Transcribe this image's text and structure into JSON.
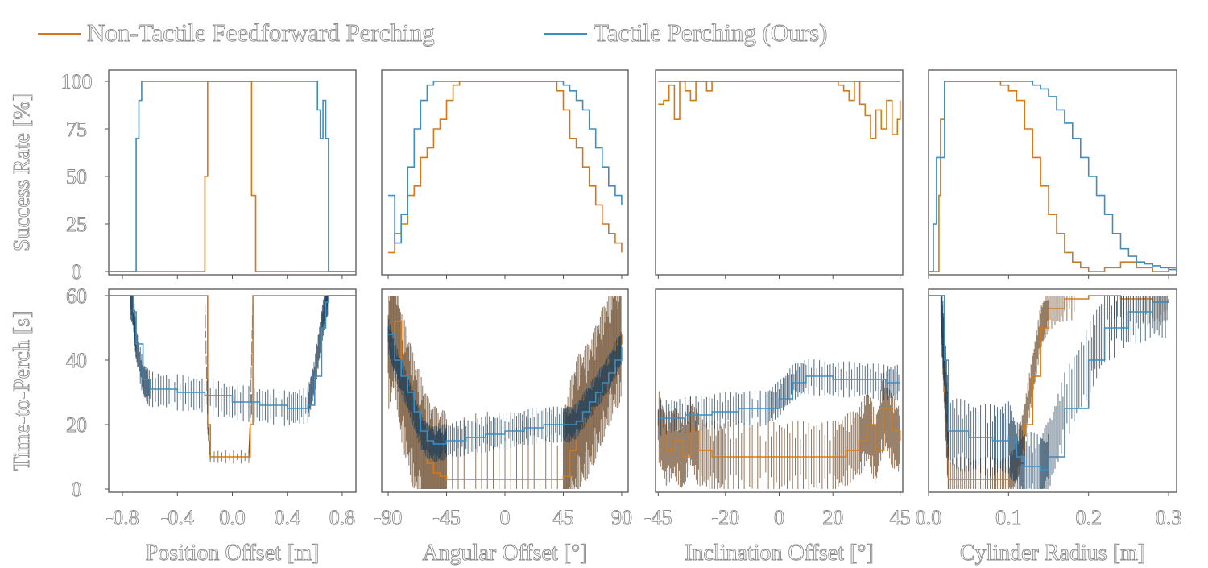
{
  "legend": [
    {
      "label": "Non-Tactile Feedforward Perching",
      "color": "#d4791a"
    },
    {
      "label": "Tactile Perching (Ours)",
      "color": "#3a8fc4"
    }
  ],
  "row_labels": {
    "top": "Success Rate [%]",
    "bottom": "Time-to-Perch [s]"
  },
  "colors": {
    "orange": "#d4791a",
    "blue": "#3a8fc4",
    "err_orange": "#6b4a2a",
    "err_blue": "#1f3f5a"
  },
  "chart_data": [
    {
      "type": "line",
      "panel": "success-rate",
      "column": "position",
      "xlabel": "Position Offset [m]",
      "ylabel": "Success Rate [%]",
      "xlim": [
        -0.9,
        0.9
      ],
      "ylim": [
        0,
        100
      ],
      "xticks": [
        "-0.8",
        "-0.4",
        "0.0",
        "0.4",
        "0.8"
      ],
      "yticks": [
        "0",
        "25",
        "50",
        "75",
        "100"
      ],
      "series": [
        {
          "name": "Non-Tactile Feedforward Perching",
          "x": [
            -0.9,
            -0.2,
            -0.2,
            -0.18,
            -0.16,
            0.13,
            0.14,
            0.17,
            0.9
          ],
          "y": [
            0,
            0,
            50,
            100,
            100,
            100,
            40,
            0,
            0
          ]
        },
        {
          "name": "Tactile Perching (Ours)",
          "x": [
            -0.9,
            -0.71,
            -0.7,
            -0.68,
            -0.66,
            0.6,
            0.62,
            0.64,
            0.66,
            0.68,
            0.7,
            0.9
          ],
          "y": [
            0,
            0,
            70,
            90,
            100,
            100,
            85,
            70,
            90,
            70,
            0,
            0
          ]
        }
      ]
    },
    {
      "type": "line",
      "panel": "success-rate",
      "column": "angular",
      "xlabel": "Angular Offset [°]",
      "ylabel": "",
      "xlim": [
        -95,
        95
      ],
      "ylim": [
        0,
        100
      ],
      "xticks": [
        "-90",
        "-45",
        "0",
        "45",
        "90"
      ],
      "yticks": [],
      "series": [
        {
          "name": "Non-Tactile Feedforward Perching",
          "x": [
            -90,
            -85,
            -80,
            -75,
            -70,
            -65,
            -60,
            -55,
            -50,
            -45,
            -40,
            -35,
            35,
            40,
            45,
            50,
            55,
            60,
            65,
            70,
            75,
            80,
            85,
            90
          ],
          "y": [
            10,
            20,
            25,
            40,
            45,
            60,
            65,
            75,
            80,
            90,
            98,
            100,
            100,
            95,
            85,
            70,
            65,
            55,
            45,
            35,
            25,
            20,
            15,
            10
          ]
        },
        {
          "name": "Tactile Perching (Ours)",
          "x": [
            -90,
            -85,
            -80,
            -75,
            -70,
            -65,
            -60,
            -55,
            -50,
            -45,
            40,
            45,
            50,
            55,
            60,
            65,
            70,
            75,
            80,
            85,
            90
          ],
          "y": [
            40,
            15,
            30,
            55,
            75,
            90,
            98,
            100,
            100,
            100,
            100,
            98,
            95,
            90,
            85,
            75,
            65,
            55,
            45,
            40,
            35
          ]
        }
      ]
    },
    {
      "type": "line",
      "panel": "success-rate",
      "column": "inclination",
      "xlabel": "Inclination Offset [°]",
      "ylabel": "",
      "xlim": [
        -46,
        46
      ],
      "ylim": [
        0,
        100
      ],
      "xticks": [
        "-45",
        "-20",
        "0",
        "20",
        "45"
      ],
      "yticks": [],
      "series": [
        {
          "name": "Non-Tactile Feedforward Perching",
          "x": [
            -45,
            -43,
            -41,
            -39,
            -37,
            -35,
            -33,
            -31,
            -29,
            -27,
            -25,
            20,
            22,
            24,
            26,
            28,
            30,
            32,
            34,
            36,
            38,
            40,
            42,
            44,
            45
          ],
          "y": [
            88,
            90,
            98,
            80,
            100,
            95,
            90,
            100,
            100,
            95,
            100,
            100,
            98,
            95,
            90,
            100,
            88,
            82,
            70,
            85,
            75,
            90,
            72,
            80,
            90
          ]
        },
        {
          "name": "Tactile Perching (Ours)",
          "x": [
            -45,
            45
          ],
          "y": [
            100,
            100
          ]
        }
      ]
    },
    {
      "type": "line",
      "panel": "success-rate",
      "column": "cylinder",
      "xlabel": "Cylinder Radius [m]",
      "ylabel": "",
      "xlim": [
        0.0,
        0.31
      ],
      "ylim": [
        0,
        100
      ],
      "xticks": [
        "0.0",
        "0.1",
        "0.2",
        "0.3"
      ],
      "yticks": [],
      "series": [
        {
          "name": "Non-Tactile Feedforward Perching",
          "x": [
            0.0,
            0.012,
            0.013,
            0.015,
            0.02,
            0.08,
            0.09,
            0.1,
            0.11,
            0.12,
            0.13,
            0.14,
            0.15,
            0.16,
            0.17,
            0.18,
            0.19,
            0.2,
            0.22,
            0.24,
            0.26,
            0.28,
            0.3,
            0.31
          ],
          "y": [
            0,
            0,
            40,
            80,
            100,
            100,
            98,
            95,
            90,
            75,
            60,
            45,
            30,
            20,
            10,
            5,
            2,
            0,
            2,
            5,
            2,
            0,
            2,
            0
          ]
        },
        {
          "name": "Tactile Perching (Ours)",
          "x": [
            0.0,
            0.005,
            0.006,
            0.01,
            0.02,
            0.12,
            0.13,
            0.14,
            0.15,
            0.16,
            0.17,
            0.18,
            0.19,
            0.2,
            0.21,
            0.22,
            0.23,
            0.24,
            0.25,
            0.26,
            0.27,
            0.28,
            0.29,
            0.3,
            0.31
          ],
          "y": [
            0,
            0,
            25,
            60,
            100,
            100,
            98,
            96,
            92,
            85,
            78,
            70,
            60,
            50,
            40,
            30,
            20,
            12,
            8,
            5,
            4,
            3,
            2,
            1,
            0
          ]
        }
      ]
    },
    {
      "type": "line",
      "panel": "time-to-perch",
      "column": "position",
      "xlabel": "Position Offset [m]",
      "ylabel": "Time-to-Perch [s]",
      "xlim": [
        -0.9,
        0.9
      ],
      "ylim": [
        0,
        60
      ],
      "xticks": [
        "-0.8",
        "-0.4",
        "0.0",
        "0.4",
        "0.8"
      ],
      "yticks": [
        "0",
        "20",
        "40",
        "60"
      ],
      "series": [
        {
          "name": "Non-Tactile Feedforward Perching",
          "x": [
            -0.9,
            -0.2,
            -0.18,
            -0.16,
            0.12,
            0.13,
            0.15,
            0.9
          ],
          "y": [
            60,
            60,
            20,
            10,
            10,
            20,
            60,
            60
          ],
          "err": 1.5
        },
        {
          "name": "Tactile Perching (Ours)",
          "x": [
            -0.9,
            -0.75,
            -0.72,
            -0.7,
            -0.65,
            -0.6,
            -0.4,
            -0.2,
            0.0,
            0.2,
            0.4,
            0.55,
            0.6,
            0.65,
            0.68,
            0.7,
            0.9
          ],
          "y": [
            60,
            60,
            55,
            45,
            34,
            31,
            30,
            29,
            27,
            26,
            25,
            26,
            35,
            50,
            58,
            60,
            60
          ],
          "err": 4
        }
      ]
    },
    {
      "type": "line",
      "panel": "time-to-perch",
      "column": "angular",
      "xlabel": "Angular Offset [°]",
      "ylabel": "",
      "xlim": [
        -95,
        95
      ],
      "ylim": [
        0,
        60
      ],
      "xticks": [
        "-90",
        "-45",
        "0",
        "45",
        "90"
      ],
      "yticks": [],
      "series": [
        {
          "name": "Non-Tactile Feedforward Perching",
          "x": [
            -90,
            -85,
            -80,
            -75,
            -70,
            -65,
            -60,
            -55,
            -50,
            -45,
            0,
            45,
            50,
            55,
            60,
            65,
            70,
            75,
            80,
            85,
            90
          ],
          "y": [
            45,
            52,
            35,
            28,
            20,
            15,
            8,
            5,
            4,
            3,
            3,
            4,
            12,
            20,
            22,
            25,
            30,
            35,
            40,
            45,
            48
          ],
          "err": 15
        },
        {
          "name": "Tactile Perching (Ours)",
          "x": [
            -90,
            -85,
            -80,
            -75,
            -70,
            -65,
            -60,
            -55,
            -50,
            -45,
            -30,
            -15,
            0,
            15,
            30,
            45,
            50,
            55,
            60,
            65,
            70,
            75,
            80,
            85,
            90
          ],
          "y": [
            48,
            40,
            35,
            30,
            24,
            18,
            15,
            14,
            14,
            15,
            16,
            17,
            18,
            19,
            20,
            20,
            20,
            21,
            24,
            27,
            30,
            33,
            36,
            40,
            44
          ],
          "err": 4
        }
      ]
    },
    {
      "type": "line",
      "panel": "time-to-perch",
      "column": "inclination",
      "xlabel": "Inclination Offset [°]",
      "ylabel": "",
      "xlim": [
        -46,
        46
      ],
      "ylim": [
        0,
        60
      ],
      "xticks": [
        "-45",
        "-20",
        "0",
        "20",
        "45"
      ],
      "yticks": [],
      "series": [
        {
          "name": "Non-Tactile Feedforward Perching",
          "x": [
            -45,
            -42,
            -39,
            -36,
            -33,
            -30,
            -25,
            -20,
            -10,
            0,
            10,
            20,
            25,
            30,
            33,
            36,
            39,
            42,
            45
          ],
          "y": [
            20,
            12,
            15,
            10,
            18,
            12,
            10,
            10,
            10,
            10,
            10,
            10,
            12,
            15,
            20,
            12,
            25,
            18,
            15
          ],
          "err": 8
        },
        {
          "name": "Tactile Perching (Ours)",
          "x": [
            -45,
            -35,
            -25,
            -15,
            -5,
            0,
            5,
            10,
            20,
            30,
            40,
            45
          ],
          "y": [
            22,
            23,
            24,
            25,
            25,
            28,
            33,
            35,
            34,
            34,
            33,
            33
          ],
          "err": 4
        }
      ]
    },
    {
      "type": "line",
      "panel": "time-to-perch",
      "column": "cylinder",
      "xlabel": "Cylinder Radius [m]",
      "ylabel": "",
      "xlim": [
        0.0,
        0.31
      ],
      "ylim": [
        0,
        60
      ],
      "xticks": [
        "0.0",
        "0.1",
        "0.2",
        "0.3"
      ],
      "yticks": [],
      "series": [
        {
          "name": "Non-Tactile Feedforward Perching",
          "x": [
            0.0,
            0.015,
            0.02,
            0.025,
            0.05,
            0.08,
            0.1,
            0.11,
            0.12,
            0.13,
            0.14,
            0.15,
            0.17,
            0.2,
            0.24,
            0.28,
            0.3
          ],
          "y": [
            60,
            60,
            30,
            3,
            3,
            3,
            3,
            8,
            20,
            35,
            50,
            56,
            59,
            60,
            59,
            58,
            59
          ],
          "err": 5
        },
        {
          "name": "Tactile Perching (Ours)",
          "x": [
            0.0,
            0.015,
            0.02,
            0.025,
            0.05,
            0.08,
            0.1,
            0.11,
            0.12,
            0.14,
            0.15,
            0.17,
            0.2,
            0.22,
            0.25,
            0.28,
            0.3
          ],
          "y": [
            60,
            60,
            40,
            18,
            16,
            15,
            16,
            10,
            7,
            6,
            10,
            25,
            40,
            50,
            55,
            58,
            58
          ],
          "err": 8
        }
      ]
    }
  ]
}
